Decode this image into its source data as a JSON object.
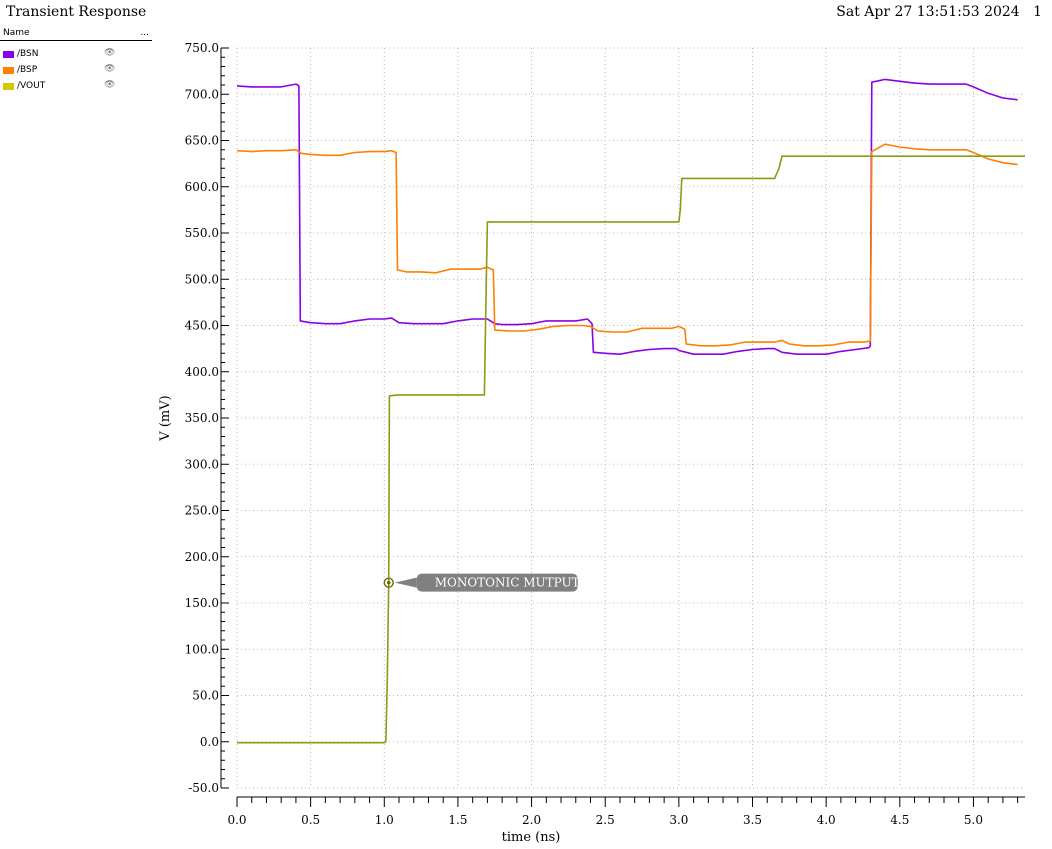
{
  "window": {
    "title": "Transient Response",
    "timestamp": "Sat Apr 27 13:51:53 2024",
    "page_number": "1"
  },
  "legend": {
    "header_name": "Name",
    "header_more": "...",
    "eye_icon": "eye-icon"
  },
  "marker": {
    "label": "MONOTONIC MUTPUT",
    "x": 1.03,
    "y": 172
  },
  "chart_data": {
    "type": "line",
    "title": "",
    "xlabel": "time (ns)",
    "ylabel": "V (mV)",
    "xlim": [
      0,
      5.35
    ],
    "ylim": [
      -50,
      750
    ],
    "xticks": [
      0.0,
      0.5,
      1.0,
      1.5,
      2.0,
      2.5,
      3.0,
      3.5,
      4.0,
      4.5,
      5.0
    ],
    "yticks": [
      -50,
      0,
      50,
      100,
      150,
      200,
      250,
      300,
      350,
      400,
      450,
      500,
      550,
      600,
      650,
      700,
      750
    ],
    "grid": true,
    "legend_position": "top-left",
    "series": [
      {
        "name": "/BSN",
        "color": "#8a00e6",
        "points": [
          [
            0.0,
            709
          ],
          [
            0.1,
            708
          ],
          [
            0.2,
            708
          ],
          [
            0.3,
            708
          ],
          [
            0.4,
            711
          ],
          [
            0.42,
            709
          ],
          [
            0.43,
            455
          ],
          [
            0.5,
            453
          ],
          [
            0.6,
            452
          ],
          [
            0.7,
            452
          ],
          [
            0.8,
            455
          ],
          [
            0.9,
            457
          ],
          [
            1.0,
            457
          ],
          [
            1.05,
            458
          ],
          [
            1.1,
            453
          ],
          [
            1.2,
            452
          ],
          [
            1.3,
            452
          ],
          [
            1.4,
            452
          ],
          [
            1.5,
            455
          ],
          [
            1.6,
            457
          ],
          [
            1.7,
            457
          ],
          [
            1.75,
            452
          ],
          [
            1.8,
            451
          ],
          [
            1.9,
            451
          ],
          [
            2.0,
            452
          ],
          [
            2.1,
            455
          ],
          [
            2.2,
            455
          ],
          [
            2.3,
            455
          ],
          [
            2.38,
            457
          ],
          [
            2.41,
            452
          ],
          [
            2.42,
            421
          ],
          [
            2.5,
            420
          ],
          [
            2.6,
            419
          ],
          [
            2.7,
            422
          ],
          [
            2.8,
            424
          ],
          [
            2.9,
            425
          ],
          [
            2.98,
            425
          ],
          [
            3.0,
            423
          ],
          [
            3.1,
            419
          ],
          [
            3.2,
            419
          ],
          [
            3.3,
            419
          ],
          [
            3.4,
            422
          ],
          [
            3.5,
            424
          ],
          [
            3.6,
            425
          ],
          [
            3.65,
            425
          ],
          [
            3.7,
            421
          ],
          [
            3.8,
            419
          ],
          [
            3.9,
            419
          ],
          [
            4.0,
            419
          ],
          [
            4.1,
            422
          ],
          [
            4.2,
            424
          ],
          [
            4.29,
            426
          ],
          [
            4.3,
            428
          ],
          [
            4.31,
            713
          ],
          [
            4.4,
            716
          ],
          [
            4.5,
            714
          ],
          [
            4.6,
            712
          ],
          [
            4.7,
            711
          ],
          [
            4.8,
            711
          ],
          [
            4.9,
            711
          ],
          [
            4.95,
            711
          ],
          [
            5.0,
            708
          ],
          [
            5.1,
            701
          ],
          [
            5.2,
            696
          ],
          [
            5.3,
            694
          ]
        ]
      },
      {
        "name": "/BSP",
        "color": "#ff7f00",
        "points": [
          [
            0.0,
            639
          ],
          [
            0.1,
            638
          ],
          [
            0.2,
            639
          ],
          [
            0.3,
            639
          ],
          [
            0.4,
            640
          ],
          [
            0.44,
            636
          ],
          [
            0.5,
            635
          ],
          [
            0.6,
            634
          ],
          [
            0.7,
            634
          ],
          [
            0.8,
            637
          ],
          [
            0.9,
            638
          ],
          [
            1.0,
            638
          ],
          [
            1.05,
            639
          ],
          [
            1.08,
            637
          ],
          [
            1.09,
            510
          ],
          [
            1.15,
            508
          ],
          [
            1.25,
            508
          ],
          [
            1.35,
            507
          ],
          [
            1.45,
            511
          ],
          [
            1.55,
            511
          ],
          [
            1.65,
            511
          ],
          [
            1.7,
            513
          ],
          [
            1.74,
            510
          ],
          [
            1.75,
            445
          ],
          [
            1.85,
            444
          ],
          [
            1.95,
            444
          ],
          [
            2.05,
            446
          ],
          [
            2.15,
            449
          ],
          [
            2.25,
            450
          ],
          [
            2.35,
            450
          ],
          [
            2.4,
            449
          ],
          [
            2.45,
            444
          ],
          [
            2.55,
            443
          ],
          [
            2.65,
            443
          ],
          [
            2.75,
            447
          ],
          [
            2.85,
            447
          ],
          [
            2.95,
            447
          ],
          [
            3.0,
            449
          ],
          [
            3.04,
            446
          ],
          [
            3.05,
            430
          ],
          [
            3.15,
            428
          ],
          [
            3.25,
            428
          ],
          [
            3.35,
            429
          ],
          [
            3.45,
            432
          ],
          [
            3.55,
            432
          ],
          [
            3.65,
            432
          ],
          [
            3.7,
            434
          ],
          [
            3.75,
            430
          ],
          [
            3.85,
            428
          ],
          [
            3.95,
            428
          ],
          [
            4.05,
            429
          ],
          [
            4.15,
            432
          ],
          [
            4.25,
            432
          ],
          [
            4.3,
            433
          ],
          [
            4.31,
            638
          ],
          [
            4.4,
            646
          ],
          [
            4.5,
            643
          ],
          [
            4.6,
            641
          ],
          [
            4.7,
            640
          ],
          [
            4.8,
            640
          ],
          [
            4.9,
            640
          ],
          [
            4.95,
            640
          ],
          [
            5.0,
            637
          ],
          [
            5.1,
            630
          ],
          [
            5.2,
            626
          ],
          [
            5.3,
            624
          ]
        ]
      },
      {
        "name": "/VOUT",
        "color": "#d4c800",
        "draw_color": "#8c9a14",
        "points": [
          [
            0.0,
            -1
          ],
          [
            0.5,
            -1
          ],
          [
            0.9,
            -1
          ],
          [
            1.0,
            -1
          ],
          [
            1.01,
            0
          ],
          [
            1.02,
            60
          ],
          [
            1.03,
            172
          ],
          [
            1.035,
            374
          ],
          [
            1.1,
            375
          ],
          [
            1.4,
            375
          ],
          [
            1.68,
            375
          ],
          [
            1.69,
            475
          ],
          [
            1.7,
            562
          ],
          [
            2.0,
            562
          ],
          [
            2.5,
            562
          ],
          [
            3.0,
            562
          ],
          [
            3.01,
            575
          ],
          [
            3.02,
            609
          ],
          [
            3.3,
            609
          ],
          [
            3.65,
            609
          ],
          [
            3.68,
            620
          ],
          [
            3.7,
            633
          ],
          [
            4.0,
            633
          ],
          [
            4.5,
            633
          ],
          [
            5.0,
            633
          ],
          [
            5.35,
            633
          ]
        ]
      }
    ]
  }
}
